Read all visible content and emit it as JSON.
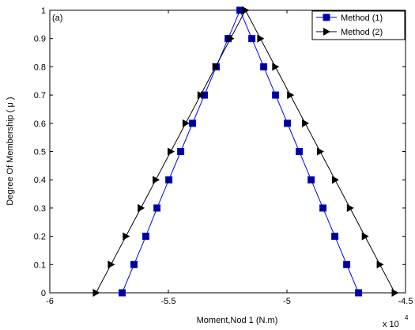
{
  "chart_data": {
    "type": "line",
    "panel_label": "(a)",
    "xlabel": "Moment,Nod 1 (N.m)",
    "ylabel": "Degree  Of  Membership ( μ )",
    "x_multiplier": "x 10",
    "x_multiplier_exp": "4",
    "xlim": [
      -6,
      -4.5
    ],
    "ylim": [
      0,
      1
    ],
    "x_ticks": [
      -6,
      -5.5,
      -5,
      -4.5
    ],
    "x_tick_labels": [
      "-6",
      "-5.5",
      "-5",
      "-4.5"
    ],
    "y_ticks": [
      0,
      0.1,
      0.2,
      0.3,
      0.4,
      0.5,
      0.6,
      0.7,
      0.8,
      0.9,
      1
    ],
    "y_tick_labels": [
      "0",
      "0.1",
      "0.2",
      "0.3",
      "0.4",
      "0.5",
      "0.6",
      "0.7",
      "0.8",
      "0.9",
      "1"
    ],
    "grid": false,
    "legend_position": "top-right",
    "series": [
      {
        "name": "Method (1)",
        "marker": "square",
        "color": "#0000ff",
        "marker_color": "#000080",
        "x": [
          -5.695,
          -5.645,
          -5.595,
          -5.548,
          -5.498,
          -5.448,
          -5.398,
          -5.348,
          -5.298,
          -5.248,
          -5.198,
          -5.148,
          -5.098,
          -5.048,
          -4.998,
          -4.948,
          -4.898,
          -4.848,
          -4.798,
          -4.748,
          -4.698
        ],
        "y": [
          0,
          0.1,
          0.2,
          0.3,
          0.4,
          0.5,
          0.6,
          0.7,
          0.8,
          0.9,
          1,
          0.9,
          0.8,
          0.7,
          0.6,
          0.5,
          0.4,
          0.3,
          0.2,
          0.1,
          0
        ]
      },
      {
        "name": "Method (2)",
        "marker": "triangle-right",
        "color": "#000000",
        "marker_color": "#000000",
        "x": [
          -5.805,
          -5.742,
          -5.679,
          -5.616,
          -5.553,
          -5.49,
          -5.427,
          -5.364,
          -5.301,
          -5.238,
          -5.175,
          -5.112,
          -5.049,
          -4.986,
          -4.923,
          -4.86,
          -4.797,
          -4.734,
          -4.671,
          -4.608,
          -4.545
        ],
        "y": [
          0,
          0.1,
          0.2,
          0.3,
          0.4,
          0.5,
          0.6,
          0.7,
          0.8,
          0.9,
          1,
          0.9,
          0.8,
          0.7,
          0.6,
          0.5,
          0.4,
          0.3,
          0.2,
          0.1,
          0
        ]
      }
    ]
  }
}
